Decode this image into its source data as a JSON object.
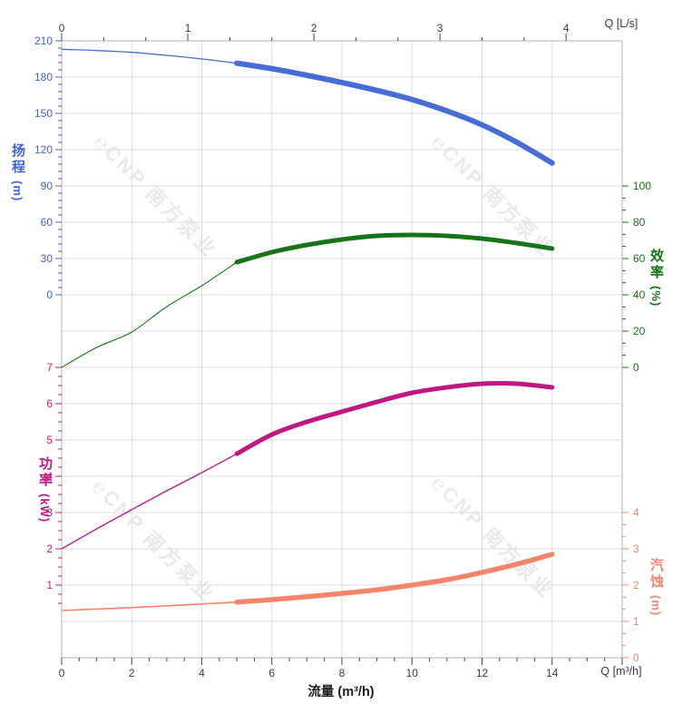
{
  "watermark": {
    "text": "℮CNP 南方泵业"
  },
  "axes": {
    "top": {
      "unit_label": "Q [L/s]",
      "ticks": [
        0,
        1,
        2,
        3,
        4
      ],
      "color": "#3a3a3a"
    },
    "bottom": {
      "unit_label": "Q [m³/h]",
      "ticks": [
        0,
        2,
        4,
        6,
        8,
        10,
        12,
        14
      ],
      "title": "流量 (m³/h)",
      "color": "#3a3a3a"
    },
    "head": {
      "hanzi": "扬程",
      "unit": "(m)",
      "ticks": [
        0,
        30,
        60,
        90,
        120,
        150,
        180,
        210
      ],
      "color": "#3d63d4"
    },
    "power": {
      "hanzi": "功率",
      "unit": "(kW)",
      "ticks": [
        1,
        2,
        3,
        4,
        5,
        6,
        7
      ],
      "color": "#c01582"
    },
    "efficiency": {
      "hanzi": "效率",
      "unit": "(%)",
      "ticks": [
        0,
        20,
        40,
        60,
        80,
        100
      ],
      "color": "#177317"
    },
    "npsh": {
      "hanzi": "汽蚀",
      "unit": "(m)",
      "ticks": [
        0,
        1,
        2,
        3,
        4
      ],
      "color": "#f5846b"
    }
  },
  "chart_data": {
    "type": "line",
    "xlabel": "流量 (m³/h)",
    "x_units": [
      "m³/h",
      "L/s"
    ],
    "x_m3h": [
      0,
      1,
      2,
      3,
      4,
      5,
      6,
      7,
      8,
      9,
      10,
      11,
      12,
      13,
      14
    ],
    "series": [
      {
        "name": "扬程",
        "unit": "m",
        "axis": "head",
        "color": "#486cd5",
        "values": [
          203,
          202,
          200.5,
          198,
          195,
          191.5,
          187,
          181.5,
          175.5,
          169,
          161.5,
          152,
          140.5,
          126,
          109
        ]
      },
      {
        "name": "效率",
        "unit": "%",
        "axis": "efficiency",
        "color": "#177317",
        "values": [
          0,
          11,
          19.5,
          33.5,
          45,
          58,
          63.5,
          67.5,
          70.5,
          72.5,
          73,
          72.5,
          71,
          68.5,
          65.5
        ]
      },
      {
        "name": "功率",
        "unit": "kW",
        "axis": "power",
        "color": "#c01582",
        "values": [
          2.0,
          2.55,
          3.08,
          3.6,
          4.1,
          4.62,
          5.15,
          5.5,
          5.78,
          6.05,
          6.3,
          6.45,
          6.55,
          6.55,
          6.45
        ]
      },
      {
        "name": "汽蚀",
        "unit": "m",
        "axis": "npsh",
        "color": "#f5846b",
        "values": [
          1.3,
          1.34,
          1.38,
          1.43,
          1.48,
          1.53,
          1.6,
          1.68,
          1.77,
          1.87,
          2.0,
          2.15,
          2.35,
          2.58,
          2.85
        ]
      }
    ],
    "thick_segment_x_range_m3h": [
      5,
      14
    ],
    "axis_ranges": {
      "flow_m3h": [
        0,
        16
      ],
      "flow_ls": [
        0,
        4
      ],
      "head_m": [
        0,
        210
      ],
      "efficiency_pct": [
        0,
        100
      ],
      "power_kw": [
        1,
        7
      ],
      "npsh_m": [
        0,
        4
      ]
    },
    "grid": "on",
    "legend": "none"
  }
}
